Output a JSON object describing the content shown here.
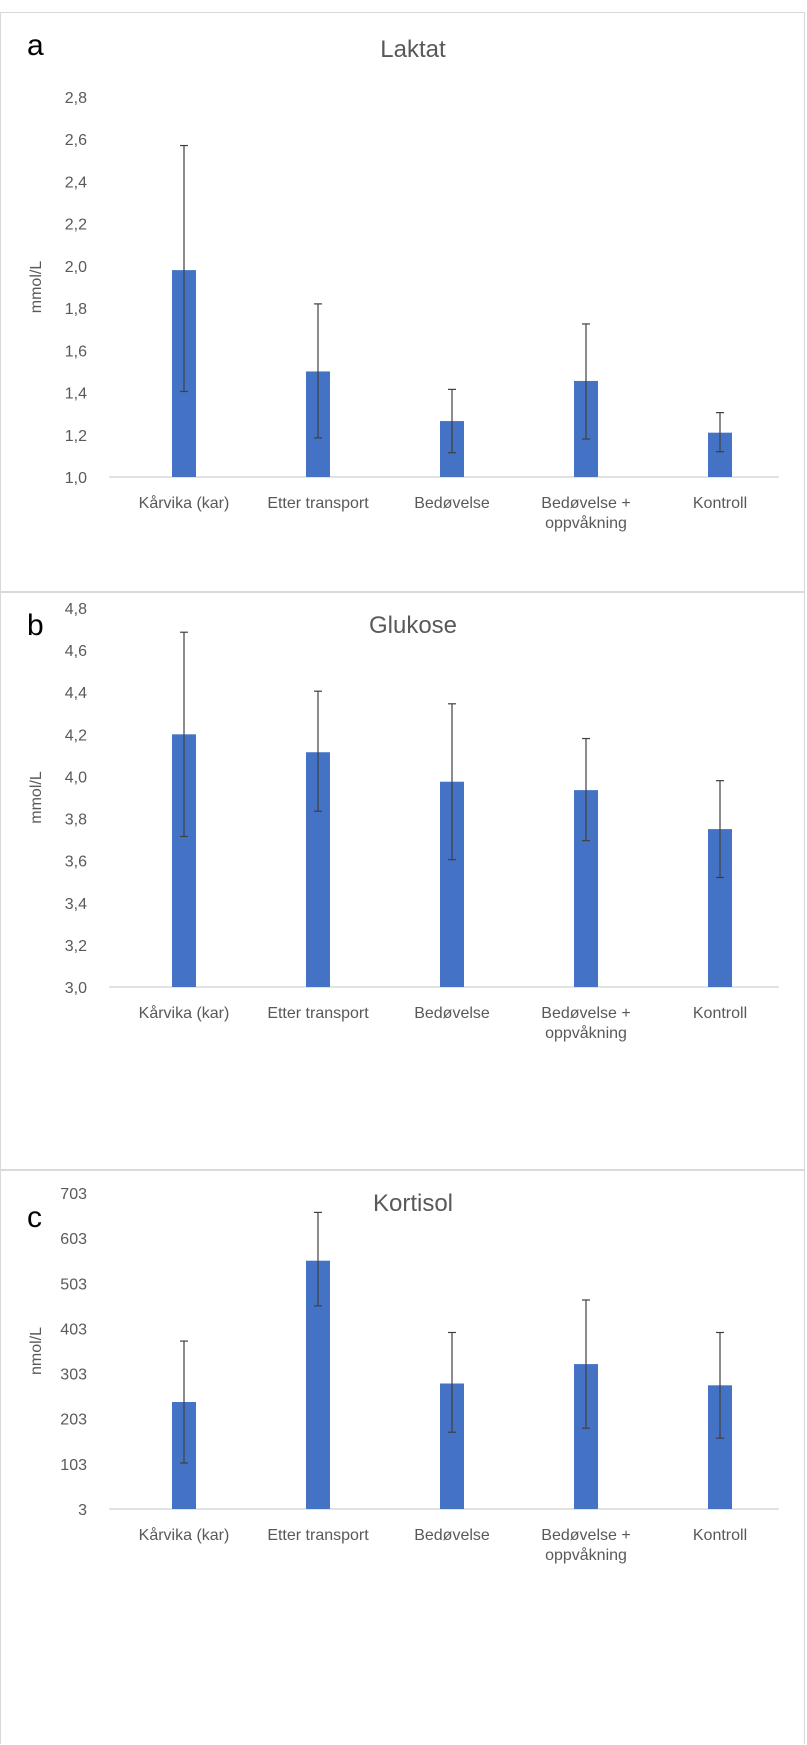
{
  "colors": {
    "bar": "#4472C4",
    "axis": "#d9d9d9",
    "error": "#404040",
    "text": "#595959"
  },
  "chart_data": [
    {
      "type": "bar",
      "panel_letter": "a",
      "title": "Laktat",
      "ylabel": "mmol/L",
      "categories": [
        "Kårvika (kar)",
        "Etter transport",
        "Bedøvelse",
        "Bedøvelse +\noppvåkning",
        "Kontroll"
      ],
      "values": [
        1.98,
        1.5,
        1.265,
        1.455,
        1.21
      ],
      "error_low": [
        1.405,
        1.185,
        1.115,
        1.18,
        1.12
      ],
      "error_high": [
        2.57,
        1.82,
        1.415,
        1.725,
        1.305
      ],
      "ylim": [
        1.0,
        2.8
      ],
      "yticks": [
        "1,0",
        "1,2",
        "1,4",
        "1,6",
        "1,8",
        "2,0",
        "2,2",
        "2,4",
        "2,6",
        "2,8"
      ],
      "grid": false
    },
    {
      "type": "bar",
      "panel_letter": "b",
      "title": "Glukose",
      "ylabel": "mmol/L",
      "categories": [
        "Kårvika (kar)",
        "Etter transport",
        "Bedøvelse",
        "Bedøvelse +\noppvåkning",
        "Kontroll"
      ],
      "values": [
        4.2,
        4.115,
        3.975,
        3.935,
        3.75
      ],
      "error_low": [
        3.715,
        3.835,
        3.605,
        3.695,
        3.52
      ],
      "error_high": [
        4.685,
        4.405,
        4.345,
        4.18,
        3.98
      ],
      "ylim": [
        3.0,
        4.8
      ],
      "yticks": [
        "3,0",
        "3,2",
        "3,4",
        "3,6",
        "3,8",
        "4,0",
        "4,2",
        "4,4",
        "4,6",
        "4,8"
      ],
      "grid": false
    },
    {
      "type": "bar",
      "panel_letter": "c",
      "title": "Kortisol",
      "ylabel": "nmol/L",
      "categories": [
        "Kårvika (kar)",
        "Etter transport",
        "Bedøvelse",
        "Bedøvelse +\noppvåkning",
        "Kontroll"
      ],
      "values": [
        240,
        553,
        281,
        324,
        277
      ],
      "error_low": [
        105,
        453,
        173,
        182,
        160
      ],
      "error_high": [
        375,
        660,
        394,
        466,
        394
      ],
      "ylim": [
        3,
        703
      ],
      "yticks": [
        "3",
        "103",
        "203",
        "303",
        "403",
        "503",
        "603",
        "703"
      ],
      "grid": false
    }
  ]
}
